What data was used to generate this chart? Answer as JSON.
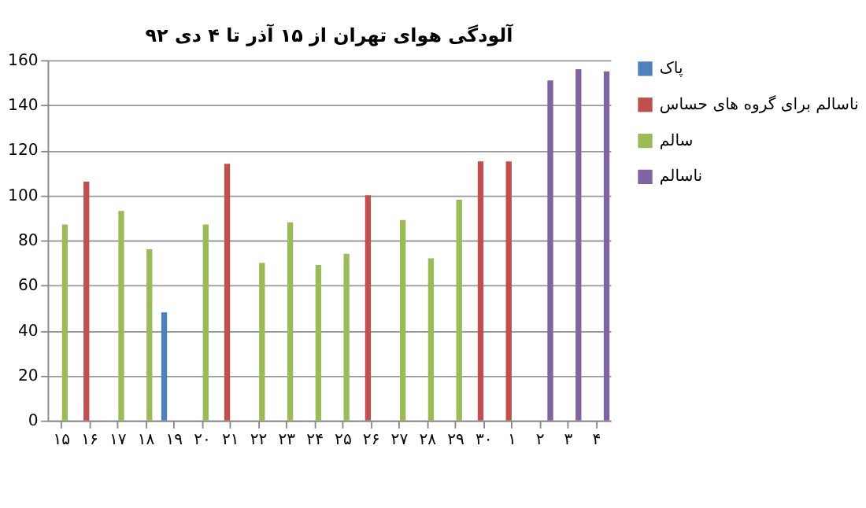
{
  "chart_data": {
    "type": "bar",
    "title": "آلودگی هوای تهران از ۱۵ آذر تا ۴ دی ۹۲",
    "categories": [
      "۱۵",
      "۱۶",
      "۱۷",
      "۱۸",
      "۱۹",
      "۲۰",
      "۲۱",
      "۲۲",
      "۲۳",
      "۲۴",
      "۲۵",
      "۲۶",
      "۲۷",
      "۲۸",
      "۲۹",
      "۳۰",
      "۱",
      "۲",
      "۳",
      "۴"
    ],
    "series": [
      {
        "name": "پاک",
        "color": "#4f81bd",
        "values": [
          null,
          null,
          null,
          null,
          48,
          null,
          null,
          null,
          null,
          null,
          null,
          null,
          null,
          null,
          null,
          null,
          null,
          null,
          null,
          null
        ]
      },
      {
        "name": "ناسالم برای گروه های حساس",
        "color": "#c0504d",
        "values": [
          null,
          106,
          null,
          null,
          null,
          null,
          114,
          null,
          null,
          null,
          null,
          100,
          null,
          null,
          null,
          115,
          115,
          null,
          null,
          null
        ]
      },
      {
        "name": "سالم",
        "color": "#9bbb59",
        "values": [
          87,
          null,
          93,
          76,
          null,
          87,
          null,
          70,
          88,
          69,
          74,
          null,
          89,
          72,
          98,
          null,
          null,
          null,
          null,
          null
        ]
      },
      {
        "name": "ناسالم",
        "color": "#8064a2",
        "values": [
          null,
          null,
          null,
          null,
          null,
          null,
          null,
          null,
          null,
          null,
          null,
          null,
          null,
          null,
          null,
          null,
          null,
          151,
          156,
          155
        ]
      }
    ],
    "ylim": [
      0,
      160
    ],
    "yticks": [
      0,
      20,
      40,
      60,
      80,
      100,
      120,
      140,
      160
    ],
    "grid": "y",
    "legend": "right"
  }
}
